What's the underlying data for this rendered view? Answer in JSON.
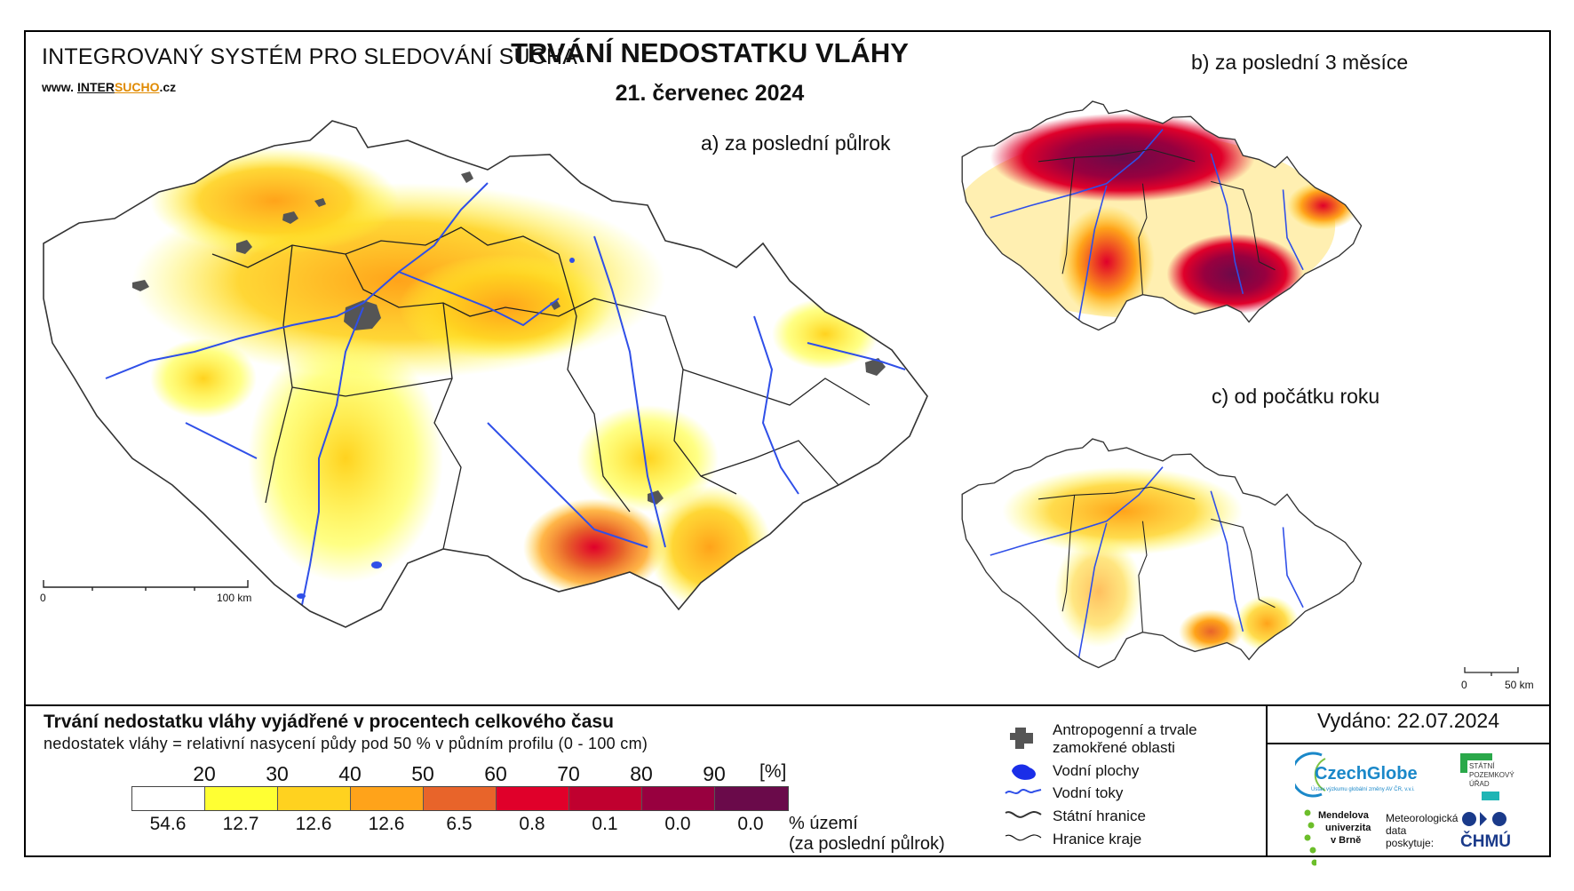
{
  "header": {
    "system_title": "INTEGROVANÝ SYSTÉM PRO SLEDOVÁNÍ SUCHA",
    "website_prefix": "www. ",
    "website_inter": "INTER",
    "website_sucho": "SUCHO",
    "website_suffix": ".cz",
    "main_title": "TRVÁNÍ NEDOSTATKU VLÁHY",
    "date": "21. červenec 2024"
  },
  "maps": {
    "a_label": "a) za poslední půlrok",
    "b_label": "b) za poslední 3 měsíce",
    "c_label": "c) od počátku roku",
    "scale_main_start": "0",
    "scale_main_end": "100 km",
    "scale_small_start": "0",
    "scale_small_end": "50 km"
  },
  "legend": {
    "title": "Trvání nedostatku vláhy vyjádřené v procentech celkového času",
    "subtitle": "nedostatek vláhy = relativní nasycení půdy pod 50 % v půdním profilu (0 - 100 cm)",
    "unit": "[%]",
    "thresholds": [
      "20",
      "30",
      "40",
      "50",
      "60",
      "70",
      "80",
      "90"
    ],
    "colors": [
      "#ffffff",
      "#ffff33",
      "#ffd21f",
      "#ffa31a",
      "#e8642a",
      "#e0002a",
      "#c0002f",
      "#98003f",
      "#6a0a4a"
    ],
    "percentages": [
      "54.6",
      "12.7",
      "12.6",
      "12.6",
      "6.5",
      "0.8",
      "0.1",
      "0.0",
      "0.0"
    ],
    "pct_note_1": "% území",
    "pct_note_2": "(za poslední půlrok)",
    "items": [
      {
        "icon": "urban-area-icon",
        "label_1": "Antropogenní a trvale",
        "label_2": "zamokřené oblasti"
      },
      {
        "icon": "water-body-icon",
        "label_1": "Vodní plochy"
      },
      {
        "icon": "river-icon",
        "label_1": "Vodní toky"
      },
      {
        "icon": "state-border-icon",
        "label_1": "Státní hranice"
      },
      {
        "icon": "region-border-icon",
        "label_1": "Hranice kraje"
      }
    ]
  },
  "footer": {
    "issued": "Vydáno: 22.07.2024",
    "czechglobe": "CzechGlobe",
    "czechglobe_sub": "Ústav výzkumu globální změny AV ČR, v.v.i.",
    "spu_1": "STÁTNÍ",
    "spu_2": "POZEMKOVÝ",
    "spu_3": "ÚŘAD",
    "mendel_1": "Mendelova",
    "mendel_2": "univerzita",
    "mendel_3": "v Brně",
    "chmu_note_1": "Meteorologická",
    "chmu_note_2": "data",
    "chmu_note_3": "poskytuje:",
    "chmu": "ČHMÚ"
  },
  "colors": {
    "river": "#2f4fe8",
    "urban": "#555555",
    "czechglobe": "#1a88c9",
    "spu": "#2aa84a",
    "mendel": "#6cbe2a",
    "chmu": "#1a3a8a"
  }
}
